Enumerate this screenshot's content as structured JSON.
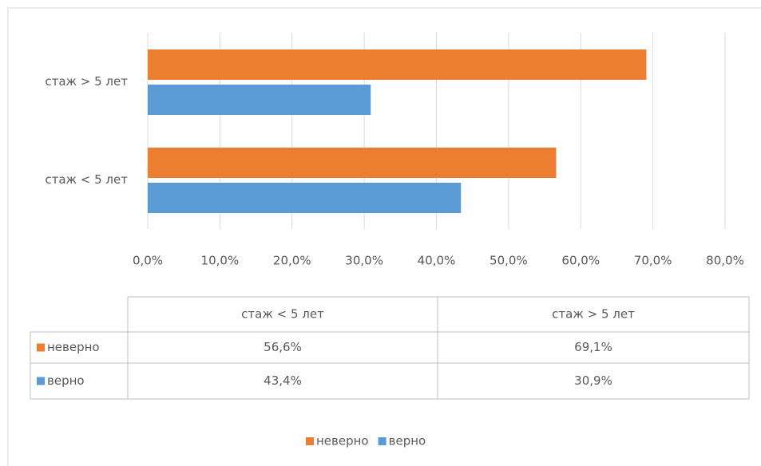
{
  "chart_data": {
    "type": "bar",
    "orientation": "horizontal",
    "categories": [
      "стаж < 5 лет",
      "стаж > 5 лет"
    ],
    "series": [
      {
        "name": "неверно",
        "color": "#ed7d31",
        "values": [
          56.6,
          69.1
        ],
        "value_labels": [
          "56,6%",
          "69,1%"
        ]
      },
      {
        "name": "верно",
        "color": "#5b9bd5",
        "values": [
          43.4,
          30.9
        ],
        "value_labels": [
          "43,4%",
          "30,9%"
        ]
      }
    ],
    "xlim": [
      0,
      80
    ],
    "xticks": [
      {
        "value": 0,
        "label": "0,0%"
      },
      {
        "value": 10,
        "label": "10,0%"
      },
      {
        "value": 20,
        "label": "20,0%"
      },
      {
        "value": 30,
        "label": "30,0%"
      },
      {
        "value": 40,
        "label": "40,0%"
      },
      {
        "value": 50,
        "label": "50,0%"
      },
      {
        "value": 60,
        "label": "60,0%"
      },
      {
        "value": 70,
        "label": "70,0%"
      },
      {
        "value": 80,
        "label": "80,0%"
      }
    ],
    "grid": true,
    "data_table": true,
    "legend": "bottom"
  }
}
